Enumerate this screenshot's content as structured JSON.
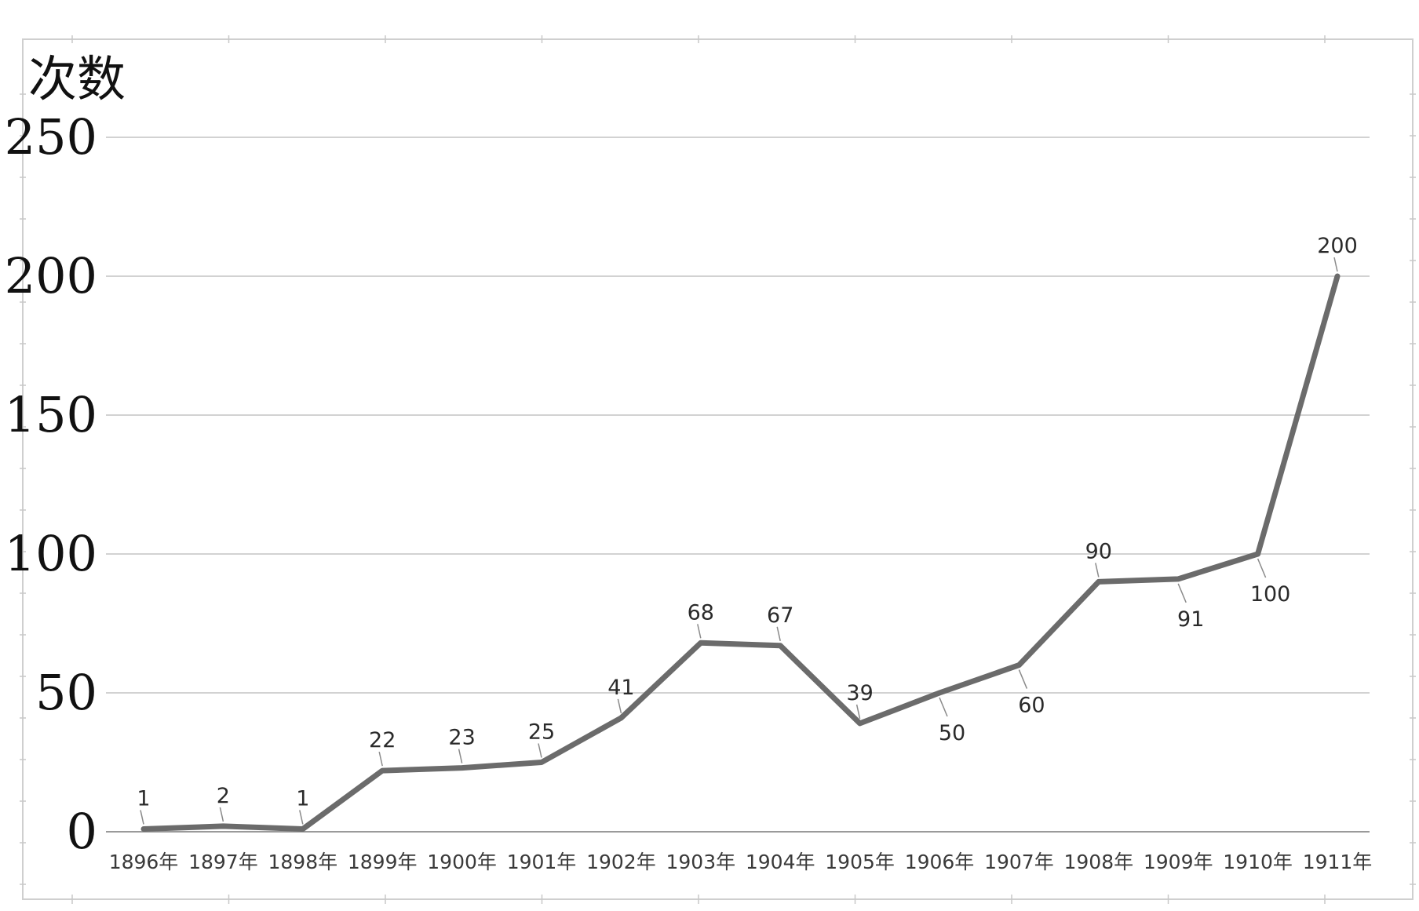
{
  "chart_data": {
    "type": "line",
    "title": "",
    "ylabel": "次数",
    "xlabel": "",
    "categories": [
      "1896年",
      "1897年",
      "1898年",
      "1899年",
      "1900年",
      "1901年",
      "1902年",
      "1903年",
      "1904年",
      "1905年",
      "1906年",
      "1907年",
      "1908年",
      "1909年",
      "1910年",
      "1911年"
    ],
    "series": [
      {
        "values": [
          1,
          2,
          1,
          22,
          23,
          25,
          41,
          68,
          67,
          39,
          50,
          60,
          90,
          91,
          100,
          200
        ]
      }
    ],
    "data_labels": [
      "1",
      "2",
      "1",
      "22",
      "23",
      "25",
      "41",
      "68",
      "67",
      "39",
      "50",
      "60",
      "90",
      "91",
      "100",
      "200"
    ],
    "data_label_positions": [
      "above",
      "above",
      "above",
      "above",
      "above",
      "above",
      "above",
      "above",
      "above",
      "above",
      "below",
      "below",
      "above",
      "below",
      "below",
      "above"
    ],
    "ylim": [
      0,
      250
    ],
    "yticks": [
      0,
      50,
      100,
      150,
      200,
      250
    ],
    "ytick_labels": [
      "0",
      "50",
      "100",
      "150",
      "200",
      "250"
    ],
    "grid": true,
    "legend": "none",
    "line_color": "#6b6b6b"
  }
}
